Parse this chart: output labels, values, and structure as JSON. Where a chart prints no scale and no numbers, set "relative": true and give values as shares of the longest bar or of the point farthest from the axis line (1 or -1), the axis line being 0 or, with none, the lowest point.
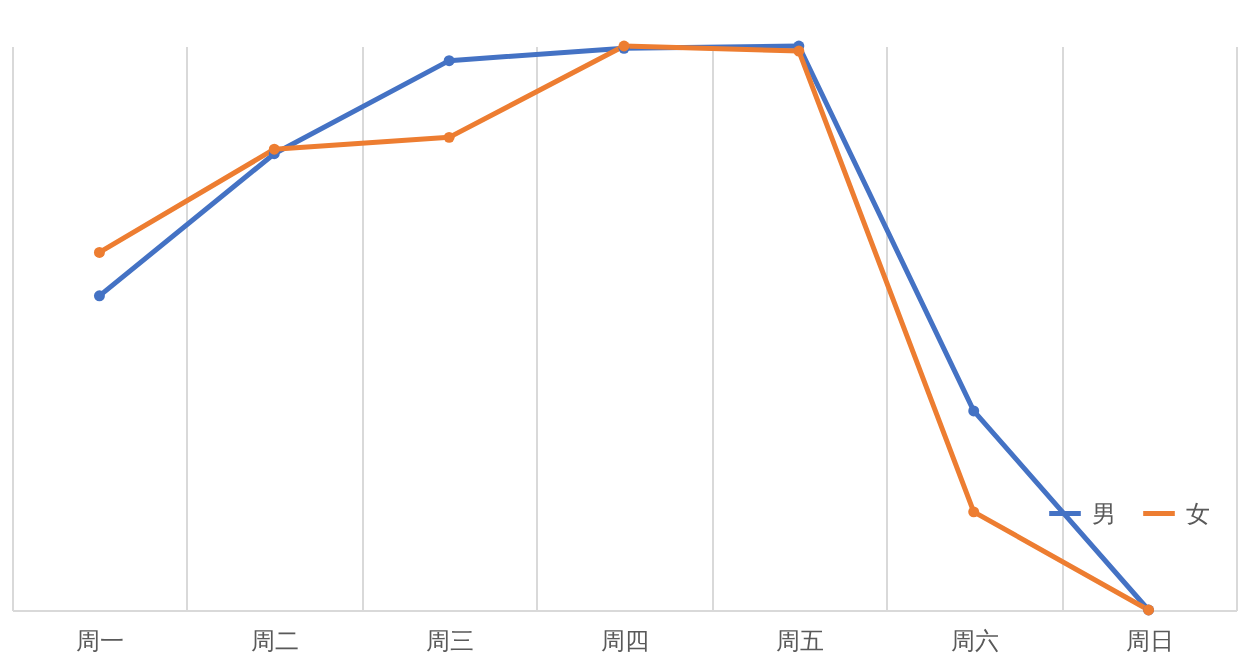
{
  "chart_data": {
    "type": "line",
    "relative": true,
    "categories": [
      "周一",
      "周二",
      "周三",
      "周四",
      "周五",
      "周六",
      "周日"
    ],
    "series": [
      {
        "name": "男",
        "color": "#4472c4",
        "values": [
          0.557,
          0.809,
          0.974,
          0.996,
          1,
          0.353,
          0
        ]
      },
      {
        "name": "女",
        "color": "#ed7d31",
        "values": [
          0.634,
          0.817,
          0.838,
          1.0,
          0.991,
          0.174,
          0
        ]
      }
    ],
    "grid": "x",
    "legend": "right",
    "marker": "circle",
    "line_style": "solid"
  }
}
